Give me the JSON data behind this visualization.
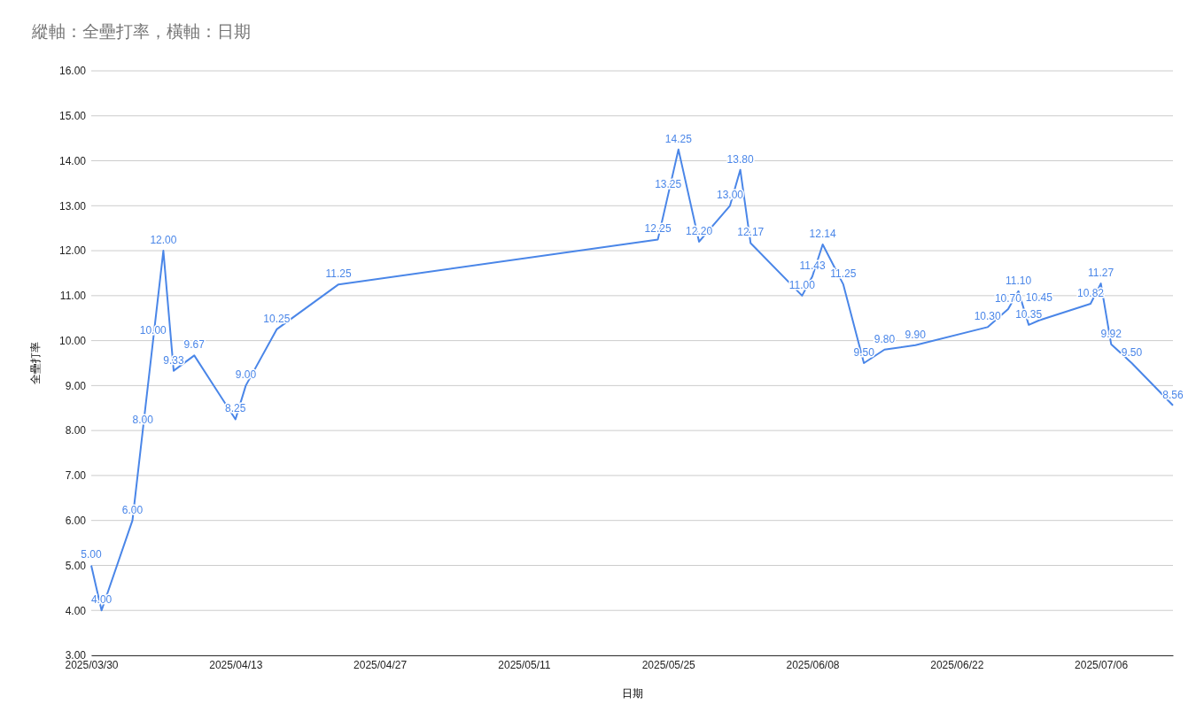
{
  "chart_data": {
    "type": "line",
    "title": "縱軸：全壘打率，橫軸：日期",
    "xlabel": "日期",
    "ylabel": "全壘打率",
    "x": [
      "2025-03-30",
      "2025-03-31",
      "2025-04-03",
      "2025-04-04",
      "2025-04-05",
      "2025-04-06",
      "2025-04-07",
      "2025-04-09",
      "2025-04-13",
      "2025-04-14",
      "2025-04-17",
      "2025-04-23",
      "2025-05-24",
      "2025-05-25",
      "2025-05-26",
      "2025-05-28",
      "2025-05-31",
      "2025-06-01",
      "2025-06-02",
      "2025-06-07",
      "2025-06-08",
      "2025-06-09",
      "2025-06-11",
      "2025-06-13",
      "2025-06-15",
      "2025-06-18",
      "2025-06-25",
      "2025-06-27",
      "2025-06-28",
      "2025-06-29",
      "2025-06-30",
      "2025-07-05",
      "2025-07-06",
      "2025-07-07",
      "2025-07-09",
      "2025-07-13"
    ],
    "series": [
      {
        "color": "#4a86e8",
        "values": [
          5.0,
          4.0,
          6.0,
          8.0,
          10.0,
          12.0,
          9.33,
          9.67,
          8.25,
          9.0,
          10.25,
          11.25,
          12.25,
          13.25,
          14.25,
          12.2,
          13.0,
          13.8,
          12.17,
          11.0,
          11.43,
          12.14,
          11.25,
          9.5,
          9.8,
          9.9,
          10.3,
          10.7,
          11.1,
          10.35,
          10.45,
          10.82,
          11.27,
          9.92,
          9.5,
          8.56
        ]
      }
    ],
    "value_labels": [
      "5.00",
      "4.00",
      "6.00",
      "8.00",
      "10.00",
      "12.00",
      "9.33",
      "9.67",
      "8.25",
      "9.00",
      "10.25",
      "11.25",
      "12.25",
      "13.25",
      "14.25",
      "12.20",
      "13.00",
      "13.80",
      "12.17",
      "11.00",
      "11.43",
      "12.14",
      "11.25",
      "9.50",
      "9.80",
      "9.90",
      "10.30",
      "10.70",
      "11.10",
      "10.35",
      "10.45",
      "10.82",
      "11.27",
      "9.92",
      "9.50",
      "8.56"
    ],
    "xlim": [
      "2025-03-30",
      "2025-07-13"
    ],
    "xticks": [
      {
        "value": "2025-03-30",
        "label": "2025/03/30"
      },
      {
        "value": "2025-04-13",
        "label": "2025/04/13"
      },
      {
        "value": "2025-04-27",
        "label": "2025/04/27"
      },
      {
        "value": "2025-05-11",
        "label": "2025/05/11"
      },
      {
        "value": "2025-05-25",
        "label": "2025/05/25"
      },
      {
        "value": "2025-06-08",
        "label": "2025/06/08"
      },
      {
        "value": "2025-06-22",
        "label": "2025/06/22"
      },
      {
        "value": "2025-07-06",
        "label": "2025/07/06"
      }
    ],
    "ylim": [
      3,
      16
    ],
    "yticks": [
      {
        "value": 3,
        "label": "3.00"
      },
      {
        "value": 4,
        "label": "4.00"
      },
      {
        "value": 5,
        "label": "5.00"
      },
      {
        "value": 6,
        "label": "6.00"
      },
      {
        "value": 7,
        "label": "7.00"
      },
      {
        "value": 8,
        "label": "8.00"
      },
      {
        "value": 9,
        "label": "9.00"
      },
      {
        "value": 10,
        "label": "10.00"
      },
      {
        "value": 11,
        "label": "11.00"
      },
      {
        "value": 12,
        "label": "12.00"
      },
      {
        "value": 13,
        "label": "13.00"
      },
      {
        "value": 14,
        "label": "14.00"
      },
      {
        "value": 15,
        "label": "15.00"
      },
      {
        "value": 16,
        "label": "16.00"
      }
    ],
    "grid": "y",
    "marker": "none",
    "line_style": "solid"
  }
}
